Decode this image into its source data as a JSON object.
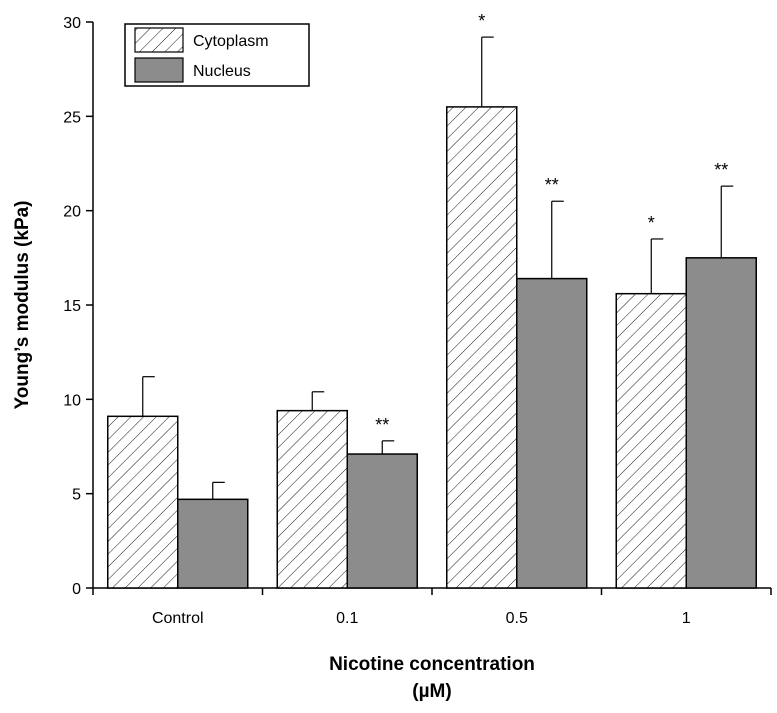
{
  "chart_data": {
    "type": "bar",
    "title": "",
    "xlabel": "Nicotine concentration",
    "xlabel_unit": "(µM)",
    "ylabel": "Young’s modulus (kPa)",
    "ylim": [
      0,
      30
    ],
    "yticks": [
      0,
      5,
      10,
      15,
      20,
      25,
      30
    ],
    "categories": [
      "Control",
      "0.1",
      "0.5",
      "1"
    ],
    "series": [
      {
        "name": "Cytoplasm",
        "fill": "hatched",
        "color": "#ffffff",
        "values": [
          9.1,
          9.4,
          25.5,
          15.6
        ],
        "errors": [
          2.1,
          1.0,
          3.7,
          2.9
        ],
        "significance": [
          "",
          "",
          "*",
          "*"
        ]
      },
      {
        "name": "Nucleus",
        "fill": "solid",
        "color": "#8c8c8c",
        "values": [
          4.7,
          7.1,
          16.4,
          17.5
        ],
        "errors": [
          0.9,
          0.7,
          4.1,
          3.8
        ],
        "significance": [
          "",
          "**",
          "**",
          "**"
        ]
      }
    ],
    "grid": false,
    "legend_position": "top-left"
  }
}
